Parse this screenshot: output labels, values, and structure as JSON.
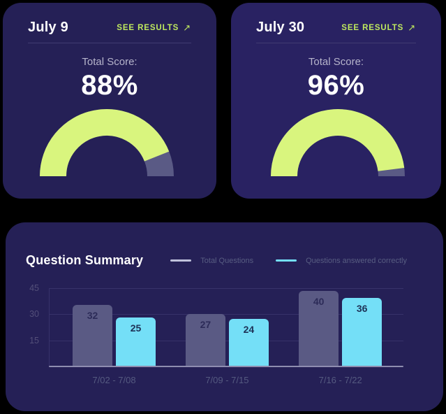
{
  "icons": {
    "arrow_up_right": "↗"
  },
  "colors": {
    "page_bg": "#000000",
    "card_bg": "#252056",
    "card_bg_right": "#292262",
    "lime": "#d9f57e",
    "gauge_rest": "#5a5a85",
    "purple_bar": "#5a5a84",
    "cyan_bar": "#74dff7",
    "link_green": "#bfe95e",
    "grid": "#37326a",
    "axis": "#8f8db0"
  },
  "cards": [
    {
      "date": "July 9",
      "link_label": "SEE RESULTS",
      "score_label": "Total Score:",
      "score_display": "88%"
    },
    {
      "date": "July 30",
      "link_label": "SEE RESULTS",
      "score_label": "Total Score:",
      "score_display": "96%"
    }
  ],
  "summary": {
    "title": "Question Summary",
    "legend": [
      {
        "label": "Total Questions",
        "swatch": "#c0c2dc"
      },
      {
        "label": "Questions answered correctly",
        "swatch": "#74dff7"
      }
    ]
  },
  "chart_data": [
    {
      "type": "gauge",
      "title": "July 9",
      "label": "Total Score:",
      "value_percent": 88,
      "display_value": "88%",
      "range": [
        0,
        100
      ],
      "fill_color": "#d9f57e",
      "rest_color": "#5a5a85"
    },
    {
      "type": "gauge",
      "title": "July 30",
      "label": "Total Score:",
      "value_percent": 96,
      "display_value": "96%",
      "range": [
        0,
        100
      ],
      "fill_color": "#d9f57e",
      "rest_color": "#5a5a85"
    },
    {
      "type": "bar",
      "title": "Question Summary",
      "categories": [
        "7/02 - 7/08",
        "7/09 - 7/15",
        "7/16 - 7/22"
      ],
      "series": [
        {
          "name": "Total Questions",
          "color": "#5a5a84",
          "label_color": "#2c2b58",
          "values": [
            32,
            27,
            40
          ]
        },
        {
          "name": "Questions answered correctly",
          "color": "#74dff7",
          "label_color": "#1d3156",
          "values": [
            25,
            24,
            36
          ]
        }
      ],
      "yticks": [
        15,
        30,
        45
      ],
      "ylim": [
        0,
        45
      ],
      "grid": true,
      "legend_position": "top-right"
    }
  ]
}
